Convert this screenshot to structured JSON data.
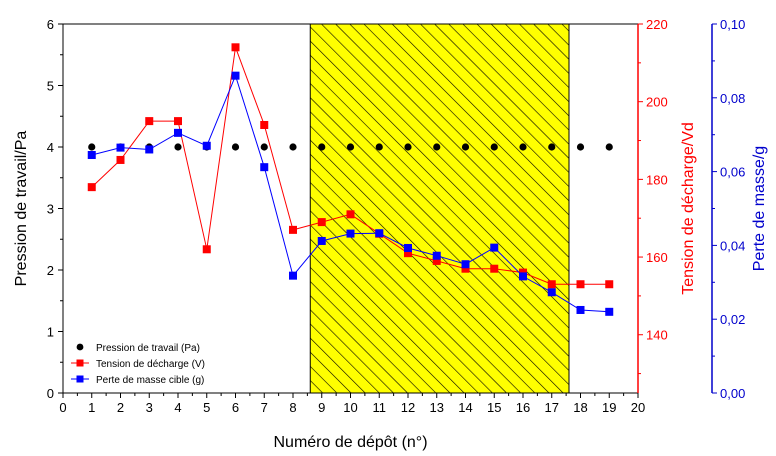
{
  "chart_data": {
    "type": "line",
    "xlabel": "Numéro de dépôt (n°)",
    "x_ticks": [
      "0",
      "1",
      "2",
      "3",
      "4",
      "5",
      "6",
      "7",
      "8",
      "9",
      "10",
      "11",
      "12",
      "13",
      "14",
      "15",
      "16",
      "17",
      "18",
      "19",
      "20"
    ],
    "xlim": [
      0,
      20
    ],
    "shaded_region": {
      "x_start": 8.6,
      "x_end": 17.6,
      "fill": "#ffff00",
      "pattern": "hatched"
    },
    "axes": {
      "left": {
        "label": "Pression de travail/Pa",
        "ylim": [
          0,
          6
        ],
        "ticks": [
          "0",
          "1",
          "2",
          "3",
          "4",
          "5",
          "6"
        ],
        "color": "#000000"
      },
      "right1": {
        "label": "Tension de décharge/Vd",
        "ylim": [
          125,
          220
        ],
        "ticks": [
          "140",
          "160",
          "180",
          "200",
          "220"
        ],
        "color": "#ff0000"
      },
      "right2": {
        "label": "Perte de masse/g",
        "ylim": [
          0,
          0.1
        ],
        "ticks": [
          "0,00",
          "0,02",
          "0,04",
          "0,06",
          "0,08",
          "0,10"
        ],
        "color": "#0000cc"
      }
    },
    "series": [
      {
        "name": "Pression de travail (Pa)",
        "axis": "left",
        "color": "#000000",
        "marker": "circle",
        "line": false,
        "x": [
          1,
          2,
          3,
          4,
          5,
          6,
          7,
          8,
          9,
          10,
          11,
          12,
          13,
          14,
          15,
          16,
          17,
          18,
          19
        ],
        "values": [
          4,
          4,
          4,
          4,
          4,
          4,
          4,
          4,
          4,
          4,
          4,
          4,
          4,
          4,
          4,
          4,
          4,
          4,
          4
        ]
      },
      {
        "name": "Tension de décharge (V)",
        "axis": "right1",
        "color": "#ff0000",
        "marker": "square",
        "line": true,
        "x": [
          1,
          2,
          3,
          4,
          5,
          6,
          7,
          8,
          9,
          10,
          11,
          12,
          13,
          14,
          15,
          16,
          17,
          18,
          19
        ],
        "values": [
          178,
          185,
          195,
          195,
          162,
          214,
          194,
          167,
          169,
          171,
          166,
          161,
          159,
          157,
          157,
          156,
          153,
          153,
          153
        ]
      },
      {
        "name": "Perte de masse cible (g)",
        "axis": "right2",
        "color": "#0000ff",
        "marker": "square",
        "line": true,
        "x": [
          1,
          2,
          3,
          4,
          5,
          6,
          7,
          8,
          9,
          10,
          11,
          12,
          13,
          14,
          15,
          16,
          17,
          18,
          19
        ],
        "values": [
          0.0645,
          0.0665,
          0.066,
          0.0705,
          0.067,
          0.086,
          0.0612,
          0.0318,
          0.0412,
          0.0432,
          0.0433,
          0.0393,
          0.0372,
          0.0349,
          0.0394,
          0.0316,
          0.0273,
          0.0225,
          0.022
        ]
      }
    ],
    "legend": {
      "placement": "bottom-left"
    }
  }
}
